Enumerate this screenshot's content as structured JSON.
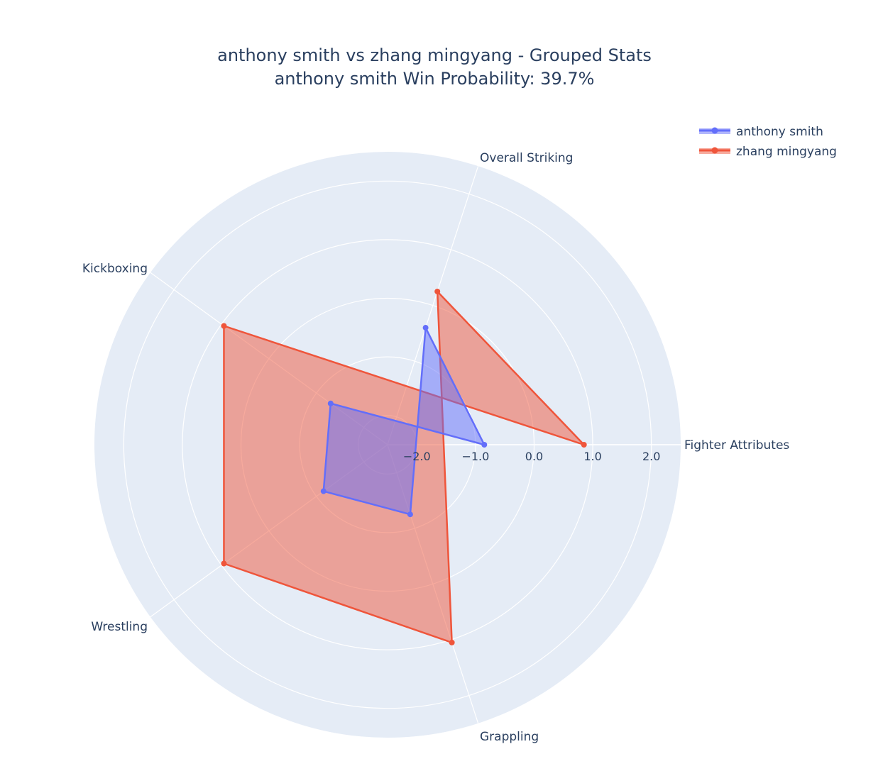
{
  "chart_data": {
    "type": "radar",
    "title_line1": "anthony smith vs zhang mingyang - Grouped Stats",
    "title_line2": "anthony smith Win Probability: 39.7%",
    "categories": [
      "Fighter Attributes",
      "Overall Striking",
      "Grappling",
      "Wrestling",
      "Kickboxing"
    ],
    "radial_range": [
      -2.5,
      2.5
    ],
    "radial_ticks": [
      -2.0,
      -1.0,
      0.0,
      1.0,
      2.0
    ],
    "radial_tick_labels": [
      "−2.0",
      "−1.0",
      "0.0",
      "1.0",
      "2.0"
    ],
    "grid": true,
    "legend_position": "top-right",
    "series": [
      {
        "name": "anthony smith",
        "color": "#636efa",
        "values": [
          -0.85,
          -0.4,
          -1.25,
          -1.15,
          -1.3
        ]
      },
      {
        "name": "zhang mingyang",
        "color": "#ef553b",
        "values": [
          0.85,
          0.25,
          1.05,
          0.95,
          0.95
        ]
      }
    ],
    "background_color": "#e5ecf6"
  }
}
